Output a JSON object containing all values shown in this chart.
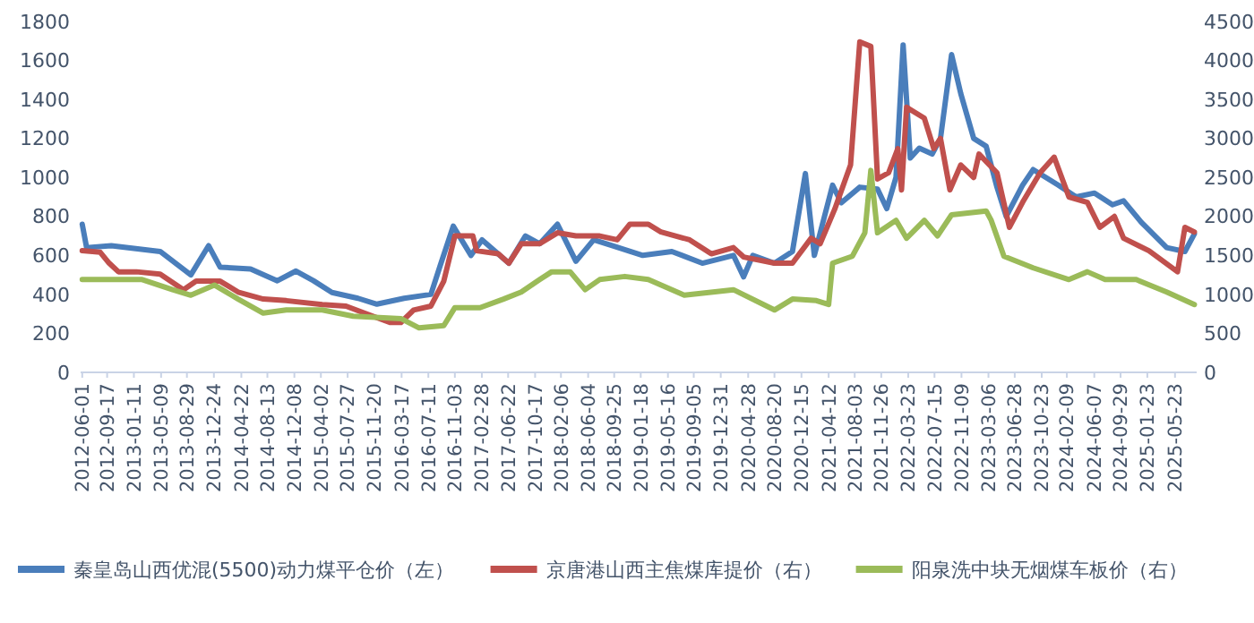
{
  "chart_data": {
    "type": "line",
    "legend": "bottom",
    "grid": false,
    "line_style": "solid",
    "marker": "none",
    "xlim": [
      "2012-05-25",
      "2025-08-25"
    ],
    "ylim": [
      0,
      1800
    ],
    "y2lim": [
      0,
      4500
    ],
    "yticks": [
      0,
      200,
      400,
      600,
      800,
      1000,
      1200,
      1400,
      1600,
      1800
    ],
    "y2ticks": [
      0,
      500,
      1000,
      1500,
      2000,
      2500,
      3000,
      3500,
      4000,
      4500
    ],
    "xticks": [
      "2012-06-01",
      "2012-09-17",
      "2013-01-11",
      "2013-05-09",
      "2013-08-29",
      "2013-12-24",
      "2014-04-22",
      "2014-08-13",
      "2014-12-08",
      "2015-04-02",
      "2015-07-27",
      "2015-11-20",
      "2016-03-17",
      "2016-07-11",
      "2016-11-03",
      "2017-02-28",
      "2017-06-22",
      "2017-10-17",
      "2018-02-06",
      "2018-06-04",
      "2018-09-25",
      "2019-01-18",
      "2019-05-16",
      "2019-09-05",
      "2019-12-31",
      "2020-04-28",
      "2020-08-20",
      "2020-12-15",
      "2021-04-12",
      "2021-08-03",
      "2021-11-26",
      "2022-03-23",
      "2022-07-15",
      "2022-11-09",
      "2023-03-06",
      "2023-06-28",
      "2023-10-23",
      "2024-02-09",
      "2024-06-07",
      "2024-09-29",
      "2025-01-23",
      "2025-05-23"
    ],
    "series": [
      {
        "name": "秦皇岛山西优混(5500)动力煤平仓价（左）",
        "color": "#4a7ebb",
        "x": [
          "2012-06-01",
          "2012-06-20",
          "2012-10-05",
          "2013-05-05",
          "2013-09-15",
          "2013-12-01",
          "2014-01-20",
          "2014-06-01",
          "2014-09-25",
          "2014-12-15",
          "2015-03-01",
          "2015-05-20",
          "2015-09-10",
          "2015-12-01",
          "2016-03-28",
          "2016-07-22",
          "2016-09-01",
          "2016-10-27",
          "2017-01-12",
          "2017-03-01",
          "2017-06-25",
          "2017-09-05",
          "2017-11-06",
          "2018-01-22",
          "2018-04-12",
          "2018-06-28",
          "2018-09-16",
          "2019-01-27",
          "2019-06-02",
          "2019-10-12",
          "2020-02-24",
          "2020-04-08",
          "2020-05-18",
          "2020-08-20",
          "2020-11-06",
          "2021-01-01",
          "2021-02-09",
          "2021-04-29",
          "2021-06-06",
          "2021-08-25",
          "2021-11-10",
          "2021-12-20",
          "2022-01-29",
          "2022-03-01",
          "2022-04-01",
          "2022-05-10",
          "2022-07-05",
          "2022-08-10",
          "2022-09-27",
          "2022-11-06",
          "2023-01-01",
          "2023-02-24",
          "2023-04-12",
          "2023-05-22",
          "2023-08-01",
          "2023-09-16",
          "2024-01-04",
          "2024-03-20",
          "2024-06-08",
          "2024-08-25",
          "2024-10-12",
          "2024-12-28",
          "2025-04-17",
          "2025-07-05",
          "2025-08-15"
        ],
        "values": [
          760,
          640,
          650,
          620,
          500,
          650,
          540,
          530,
          470,
          520,
          470,
          410,
          380,
          350,
          380,
          400,
          550,
          750,
          600,
          680,
          560,
          700,
          660,
          760,
          570,
          680,
          650,
          600,
          620,
          560,
          600,
          490,
          600,
          560,
          620,
          1020,
          600,
          960,
          870,
          950,
          940,
          840,
          1000,
          1680,
          1100,
          1150,
          1120,
          1200,
          1630,
          1430,
          1200,
          1160,
          950,
          800,
          960,
          1040,
          960,
          900,
          920,
          860,
          880,
          770,
          640,
          620,
          710
        ]
      },
      {
        "name": "京唐港山西主焦煤库提价（右）",
        "color": "#c0504d",
        "axis": "y2",
        "x": [
          "2012-06-01",
          "2012-08-18",
          "2012-09-26",
          "2012-11-05",
          "2013-01-22",
          "2013-05-05",
          "2013-08-14",
          "2013-10-08",
          "2014-01-20",
          "2014-04-08",
          "2014-07-26",
          "2014-11-03",
          "2015-04-08",
          "2015-07-20",
          "2015-10-08",
          "2016-01-26",
          "2016-03-14",
          "2016-05-08",
          "2016-07-22",
          "2016-09-16",
          "2016-11-03",
          "2017-01-20",
          "2017-02-05",
          "2017-05-10",
          "2017-06-25",
          "2017-08-18",
          "2017-11-06",
          "2018-01-22",
          "2018-04-12",
          "2018-07-24",
          "2018-10-08",
          "2018-12-02",
          "2019-02-20",
          "2019-04-16",
          "2019-08-18",
          "2019-11-20",
          "2020-02-24",
          "2020-04-08",
          "2020-08-20",
          "2020-11-06",
          "2021-01-26",
          "2021-03-06",
          "2021-05-08",
          "2021-07-16",
          "2021-08-25",
          "2021-10-12",
          "2021-11-10",
          "2021-12-28",
          "2022-02-06",
          "2022-02-22",
          "2022-03-16",
          "2022-06-01",
          "2022-07-12",
          "2022-08-10",
          "2022-09-20",
          "2022-11-06",
          "2023-01-01",
          "2023-01-24",
          "2023-04-12",
          "2023-06-05",
          "2023-08-01",
          "2023-10-16",
          "2023-12-16",
          "2024-02-18",
          "2024-05-08",
          "2024-07-01",
          "2024-09-02",
          "2024-10-12",
          "2025-01-30",
          "2025-06-03",
          "2025-07-05",
          "2025-08-15"
        ],
        "values": [
          1560,
          1540,
          1400,
          1290,
          1290,
          1260,
          1060,
          1170,
          1170,
          1030,
          940,
          920,
          870,
          850,
          760,
          640,
          640,
          800,
          850,
          1170,
          1750,
          1750,
          1560,
          1520,
          1400,
          1650,
          1650,
          1790,
          1750,
          1750,
          1700,
          1900,
          1900,
          1800,
          1700,
          1520,
          1600,
          1480,
          1400,
          1400,
          1720,
          1650,
          2090,
          2660,
          4240,
          4180,
          2480,
          2560,
          2870,
          2340,
          3400,
          3260,
          2870,
          3000,
          2340,
          2660,
          2500,
          2800,
          2560,
          1860,
          2180,
          2560,
          2760,
          2250,
          2180,
          1860,
          2000,
          1720,
          1560,
          1290,
          1860,
          1800
        ]
      },
      {
        "name": "阳泉洗中块无烟煤车板价（右）",
        "color": "#9bbb59",
        "axis": "y2",
        "x": [
          "2012-06-01",
          "2013-02-16",
          "2013-06-28",
          "2013-09-15",
          "2013-12-26",
          "2014-04-08",
          "2014-07-26",
          "2014-11-03",
          "2015-04-08",
          "2015-08-20",
          "2016-03-14",
          "2016-06-01",
          "2016-09-16",
          "2016-11-03",
          "2017-02-20",
          "2017-06-02",
          "2017-08-18",
          "2017-11-06",
          "2017-12-28",
          "2018-03-18",
          "2018-05-22",
          "2018-07-24",
          "2018-11-10",
          "2019-02-20",
          "2019-07-26",
          "2020-02-24",
          "2020-08-20",
          "2020-11-06",
          "2021-02-18",
          "2021-04-12",
          "2021-04-29",
          "2021-07-24",
          "2021-09-16",
          "2021-10-12",
          "2021-11-10",
          "2022-01-29",
          "2022-03-16",
          "2022-06-01",
          "2022-07-28",
          "2022-09-27",
          "2023-02-24",
          "2023-03-18",
          "2023-05-12",
          "2023-09-16",
          "2024-02-18",
          "2024-05-08",
          "2024-07-24",
          "2024-12-06",
          "2025-04-17",
          "2025-08-15"
        ],
        "values": [
          1190,
          1190,
          1060,
          990,
          1120,
          940,
          760,
          800,
          800,
          720,
          690,
          570,
          600,
          830,
          830,
          940,
          1030,
          1190,
          1290,
          1290,
          1060,
          1190,
          1230,
          1190,
          990,
          1060,
          800,
          940,
          920,
          870,
          1400,
          1490,
          1790,
          2590,
          1790,
          1950,
          1720,
          1950,
          1750,
          2020,
          2070,
          1950,
          1490,
          1340,
          1190,
          1290,
          1190,
          1190,
          1030,
          870
        ]
      }
    ]
  }
}
